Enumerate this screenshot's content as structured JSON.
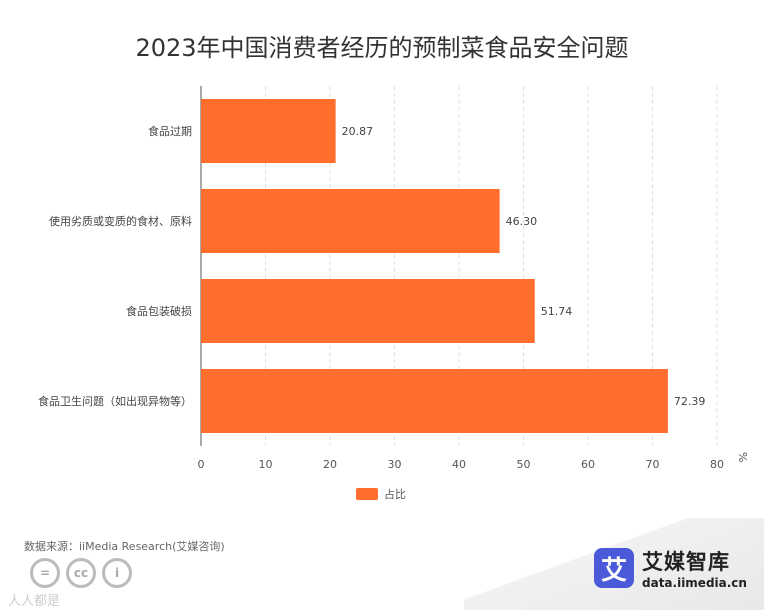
{
  "title": "2023年中国消费者经历的预制菜食品安全问题",
  "chart_data": {
    "type": "bar",
    "orientation": "horizontal",
    "categories": [
      "食品过期",
      "使用劣质或变质的食材、原料",
      "食品包装破损",
      "食品卫生问题（如出现异物等）"
    ],
    "series": [
      {
        "name": "占比",
        "values": [
          20.87,
          46.3,
          51.74,
          72.39
        ],
        "labels": [
          "20.87",
          "46.30",
          "51.74",
          "72.39"
        ]
      }
    ],
    "xlim": [
      0,
      80
    ],
    "xticks": [
      0,
      10,
      20,
      30,
      40,
      50,
      60,
      70,
      80
    ],
    "unit": "%",
    "grid": "vertical dashed",
    "legend": "bottom-center",
    "colors": {
      "bar": "#FF6E2D"
    }
  },
  "source": "数据来源：iiMedia Research(艾媒咨询)",
  "brand": {
    "logo_char": "艾",
    "name": "艾媒智库",
    "url": "data.iimedia.cn"
  },
  "license": {
    "icons": [
      "=",
      "cc",
      "i"
    ],
    "watermark": "人人都是"
  }
}
